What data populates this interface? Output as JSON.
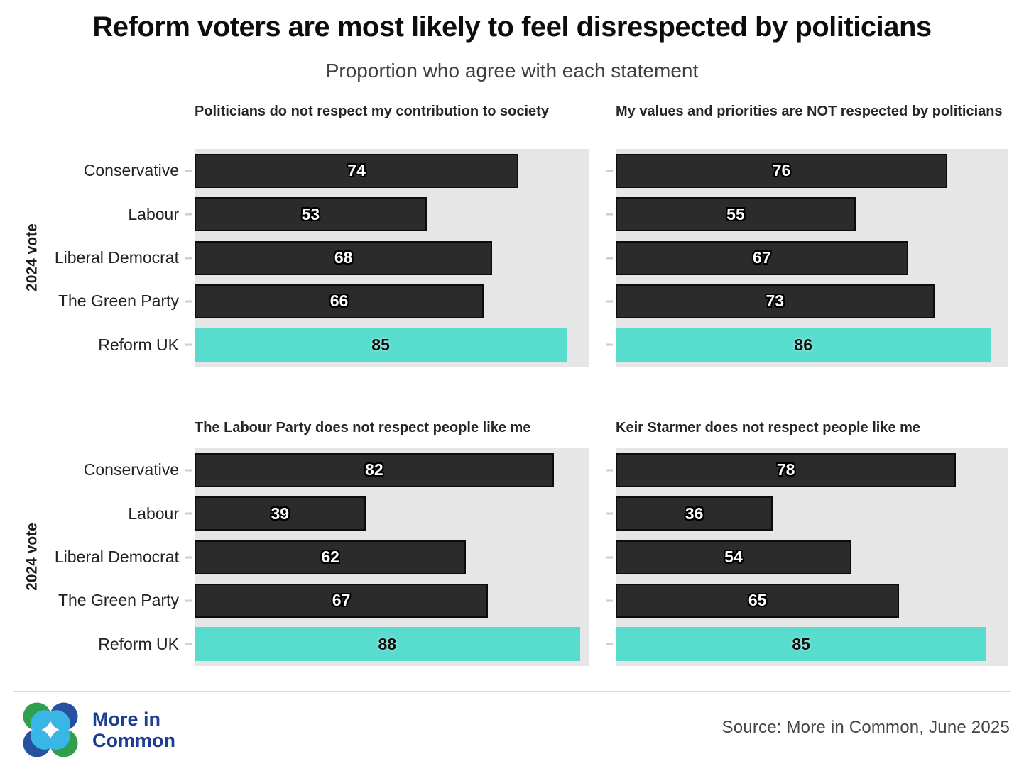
{
  "header": {
    "title": "Reform voters are most likely to feel disrespected by politicians",
    "subtitle": "Proportion who agree with each statement"
  },
  "axis": {
    "group_label": "2024 vote",
    "categories": [
      "Conservative",
      "Labour",
      "Liberal Democrat",
      "The Green Party",
      "Reform UK"
    ]
  },
  "chart_data": [
    {
      "type": "bar",
      "orientation": "horizontal",
      "title": "Politicians do not respect my contribution to society",
      "categories": [
        "Conservative",
        "Labour",
        "Liberal Democrat",
        "The Green Party",
        "Reform UK"
      ],
      "values": [
        74,
        53,
        68,
        66,
        85
      ],
      "xlim": [
        0,
        90
      ],
      "highlight_index": 4,
      "highlight_category": "Reform UK",
      "grid": false,
      "legend": "none"
    },
    {
      "type": "bar",
      "orientation": "horizontal",
      "title": "My values and priorities are NOT respected by politicians",
      "categories": [
        "Conservative",
        "Labour",
        "Liberal Democrat",
        "The Green Party",
        "Reform UK"
      ],
      "values": [
        76,
        55,
        67,
        73,
        86
      ],
      "xlim": [
        0,
        90
      ],
      "highlight_index": 4,
      "highlight_category": "Reform UK",
      "grid": false,
      "legend": "none"
    },
    {
      "type": "bar",
      "orientation": "horizontal",
      "title": "The Labour Party does not respect people like me",
      "categories": [
        "Conservative",
        "Labour",
        "Liberal Democrat",
        "The Green Party",
        "Reform UK"
      ],
      "values": [
        82,
        39,
        62,
        67,
        88
      ],
      "xlim": [
        0,
        90
      ],
      "highlight_index": 4,
      "highlight_category": "Reform UK",
      "grid": false,
      "legend": "none"
    },
    {
      "type": "bar",
      "orientation": "horizontal",
      "title": "Keir Starmer does not respect people like me",
      "categories": [
        "Conservative",
        "Labour",
        "Liberal Democrat",
        "The Green Party",
        "Reform UK"
      ],
      "values": [
        78,
        36,
        54,
        65,
        85
      ],
      "xlim": [
        0,
        90
      ],
      "highlight_index": 4,
      "highlight_category": "Reform UK",
      "grid": false,
      "legend": "none"
    }
  ],
  "colors": {
    "bar": "#2b2b2b",
    "bar_border": "#0c0c0c",
    "highlight": "#57dccd",
    "panel_bg": "#e6e6e6",
    "logo_green": "#2f9e4d",
    "logo_navy": "#27519e",
    "logo_cyan": "#38b6e6",
    "logo_text": "#1e3e96"
  },
  "footer": {
    "logo_line1": "More in",
    "logo_line2": "Common",
    "source": "Source: More in Common, June 2025"
  }
}
